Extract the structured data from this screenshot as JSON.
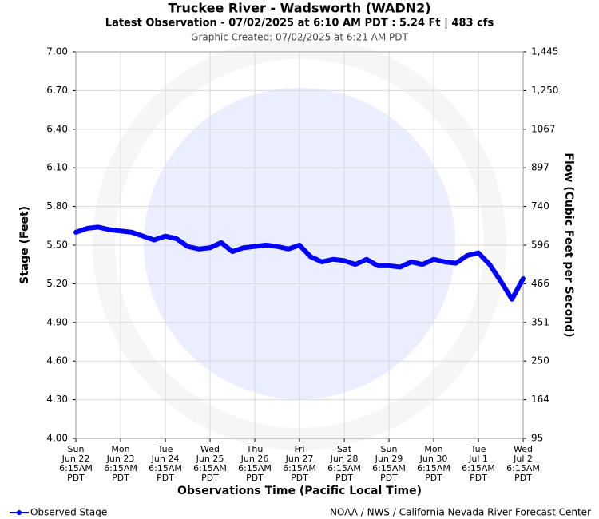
{
  "chart_data": {
    "type": "line",
    "title": "Truckee River - Wadsworth (WADN2)",
    "subtitle": "Latest Observation - 07/02/2025 at 6:10 AM PDT : 5.24 Ft | 483 cfs",
    "note": "Graphic Created: 07/02/2025 at 6:21 AM PDT",
    "ylabel": "Stage (Feet)",
    "y2label": "Flow (Cubic Feet per Second)",
    "xlabel": "Observations Time (Pacific Local Time)",
    "footer": "NOAA / NWS / California Nevada River Forecast Center",
    "legend": "bottom-left",
    "grid": true,
    "xlim": [
      "2025-06-22T06:15",
      "2025-07-02T06:15"
    ],
    "xticks": [
      {
        "value": "2025-06-22T06:15",
        "label": [
          "Sun",
          "Jun 22",
          "6:15AM",
          "PDT"
        ]
      },
      {
        "value": "2025-06-23T06:15",
        "label": [
          "Mon",
          "Jun 23",
          "6:15AM",
          "PDT"
        ]
      },
      {
        "value": "2025-06-24T06:15",
        "label": [
          "Tue",
          "Jun 24",
          "6:15AM",
          "PDT"
        ]
      },
      {
        "value": "2025-06-25T06:15",
        "label": [
          "Wed",
          "Jun 25",
          "6:15AM",
          "PDT"
        ]
      },
      {
        "value": "2025-06-26T06:15",
        "label": [
          "Thu",
          "Jun 26",
          "6:15AM",
          "PDT"
        ]
      },
      {
        "value": "2025-06-27T06:15",
        "label": [
          "Fri",
          "Jun 27",
          "6:15AM",
          "PDT"
        ]
      },
      {
        "value": "2025-06-28T06:15",
        "label": [
          "Sat",
          "Jun 28",
          "6:15AM",
          "PDT"
        ]
      },
      {
        "value": "2025-06-29T06:15",
        "label": [
          "Sun",
          "Jun 29",
          "6:15AM",
          "PDT"
        ]
      },
      {
        "value": "2025-06-30T06:15",
        "label": [
          "Mon",
          "Jun 30",
          "6:15AM",
          "PDT"
        ]
      },
      {
        "value": "2025-07-01T06:15",
        "label": [
          "Tue",
          "Jul 1",
          "6:15AM",
          "PDT"
        ]
      },
      {
        "value": "2025-07-02T06:15",
        "label": [
          "Wed",
          "Jul 2",
          "6:15AM",
          "PDT"
        ]
      }
    ],
    "ylim": [
      4.0,
      7.0
    ],
    "yticks": [
      {
        "value": 4.0,
        "label": "4.00"
      },
      {
        "value": 4.3,
        "label": "4.30"
      },
      {
        "value": 4.6,
        "label": "4.60"
      },
      {
        "value": 4.9,
        "label": "4.90"
      },
      {
        "value": 5.2,
        "label": "5.20"
      },
      {
        "value": 5.5,
        "label": "5.50"
      },
      {
        "value": 5.8,
        "label": "5.80"
      },
      {
        "value": 6.1,
        "label": "6.10"
      },
      {
        "value": 6.4,
        "label": "6.40"
      },
      {
        "value": 6.7,
        "label": "6.70"
      },
      {
        "value": 7.0,
        "label": "7.00"
      }
    ],
    "y2lim": [
      95,
      1445
    ],
    "y2ticks": [
      95,
      164,
      250,
      351,
      466,
      596,
      740,
      897,
      1067,
      {
        "value": 1250,
        "label": "1,250"
      },
      {
        "value": 1445,
        "label": "1,445"
      }
    ],
    "x": [
      "2025-06-22T06:15",
      "2025-06-22T12:15",
      "2025-06-22T18:15",
      "2025-06-23T00:15",
      "2025-06-23T06:15",
      "2025-06-23T12:15",
      "2025-06-23T18:15",
      "2025-06-24T00:15",
      "2025-06-24T06:15",
      "2025-06-24T12:15",
      "2025-06-24T18:15",
      "2025-06-25T00:15",
      "2025-06-25T06:15",
      "2025-06-25T12:15",
      "2025-06-25T18:15",
      "2025-06-26T00:15",
      "2025-06-26T06:15",
      "2025-06-26T12:15",
      "2025-06-26T18:15",
      "2025-06-27T00:15",
      "2025-06-27T06:15",
      "2025-06-27T12:15",
      "2025-06-27T18:15",
      "2025-06-28T00:15",
      "2025-06-28T06:15",
      "2025-06-28T12:15",
      "2025-06-28T18:15",
      "2025-06-29T00:15",
      "2025-06-29T06:15",
      "2025-06-29T12:15",
      "2025-06-29T18:15",
      "2025-06-30T00:15",
      "2025-06-30T06:15",
      "2025-06-30T12:15",
      "2025-06-30T18:15",
      "2025-07-01T00:15",
      "2025-07-01T06:15",
      "2025-07-01T12:15",
      "2025-07-01T18:15",
      "2025-07-02T00:15",
      "2025-07-02T06:15"
    ],
    "series": [
      {
        "name": "Observed Stage",
        "color": "#0000ff",
        "values": [
          5.6,
          5.63,
          5.64,
          5.62,
          5.61,
          5.6,
          5.57,
          5.54,
          5.57,
          5.55,
          5.49,
          5.47,
          5.48,
          5.52,
          5.45,
          5.48,
          5.49,
          5.5,
          5.49,
          5.47,
          5.5,
          5.41,
          5.37,
          5.39,
          5.38,
          5.35,
          5.39,
          5.34,
          5.34,
          5.33,
          5.37,
          5.35,
          5.39,
          5.37,
          5.36,
          5.42,
          5.44,
          5.35,
          5.22,
          5.08,
          5.24
        ]
      }
    ]
  }
}
